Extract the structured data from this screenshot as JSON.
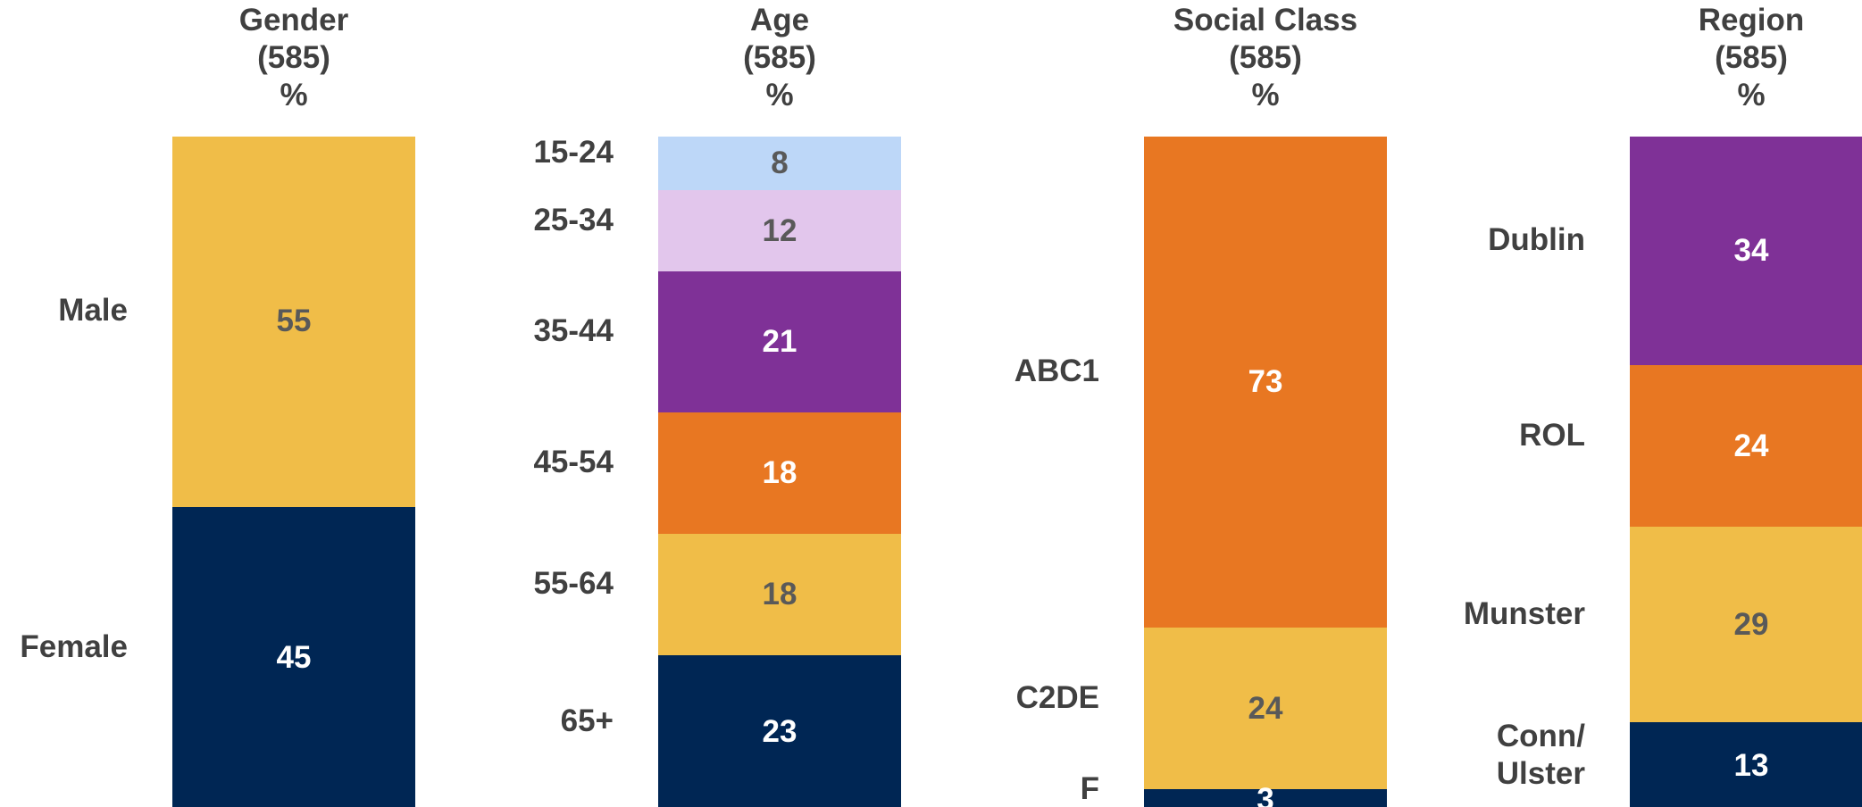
{
  "chart_data": [
    {
      "type": "stacked_bar",
      "title_lines": [
        "Gender",
        "(585)",
        "%"
      ],
      "categories": [
        "Male",
        "Female"
      ],
      "values": [
        55,
        45
      ],
      "colors": [
        "#f0bd48",
        "#002654"
      ]
    },
    {
      "type": "stacked_bar",
      "title_lines": [
        "Age",
        "(585)",
        "%"
      ],
      "categories": [
        "15-24",
        "25-34",
        "35-44",
        "45-54",
        "55-64",
        "65+"
      ],
      "values": [
        8,
        12,
        21,
        18,
        18,
        23
      ],
      "colors": [
        "#bdd7f8",
        "#e2c6ec",
        "#7f3197",
        "#e87722",
        "#f0bd48",
        "#002654"
      ]
    },
    {
      "type": "stacked_bar",
      "title_lines": [
        "Social Class",
        "(585)",
        "%"
      ],
      "categories": [
        "ABC1",
        "C2DE",
        "F"
      ],
      "values": [
        73,
        24,
        3
      ],
      "colors": [
        "#e87722",
        "#f0bd48",
        "#002654"
      ]
    },
    {
      "type": "stacked_bar",
      "title_lines": [
        "Region",
        "(585)",
        "%"
      ],
      "categories": [
        "Dublin",
        "ROL",
        "Munster",
        "Conn/\nUlster"
      ],
      "values": [
        34,
        24,
        29,
        13
      ],
      "colors": [
        "#7f3197",
        "#e87722",
        "#f0bd48",
        "#002654"
      ]
    }
  ]
}
